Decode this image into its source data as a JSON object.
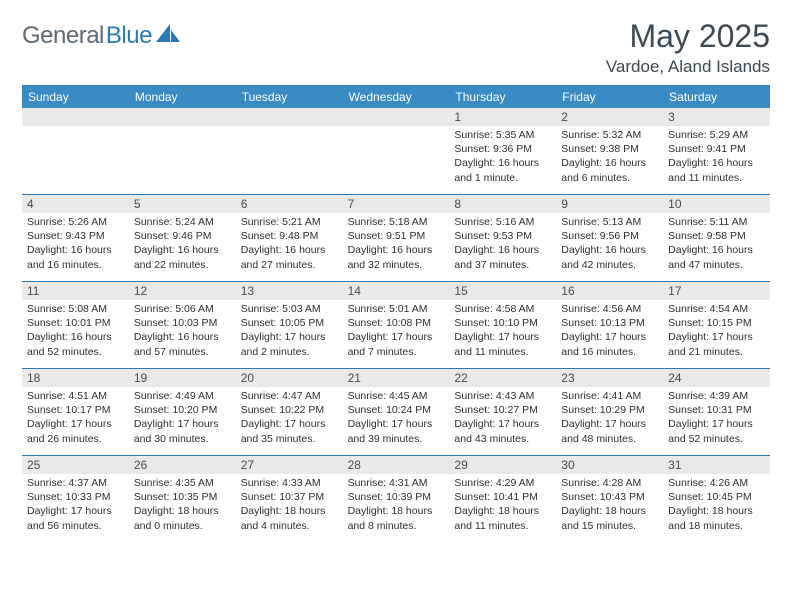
{
  "brand": {
    "text1": "General",
    "text2": "Blue",
    "icon_color": "#2a7ab8",
    "text1_color": "#5d6a74",
    "text2_color": "#2a7ab8"
  },
  "title": "May 2025",
  "location": "Vardoe, Aland Islands",
  "colors": {
    "header_bg": "#3a8ac4",
    "rule": "#2a7ab8",
    "daynum_bg": "#e9e9e9",
    "text": "#2f2f2f"
  },
  "weekdays": [
    "Sunday",
    "Monday",
    "Tuesday",
    "Wednesday",
    "Thursday",
    "Friday",
    "Saturday"
  ],
  "weeks": [
    [
      {
        "empty": true
      },
      {
        "empty": true
      },
      {
        "empty": true
      },
      {
        "empty": true
      },
      {
        "num": "1",
        "sunrise": "Sunrise: 5:35 AM",
        "sunset": "Sunset: 9:36 PM",
        "daylight1": "Daylight: 16 hours",
        "daylight2": "and 1 minute."
      },
      {
        "num": "2",
        "sunrise": "Sunrise: 5:32 AM",
        "sunset": "Sunset: 9:38 PM",
        "daylight1": "Daylight: 16 hours",
        "daylight2": "and 6 minutes."
      },
      {
        "num": "3",
        "sunrise": "Sunrise: 5:29 AM",
        "sunset": "Sunset: 9:41 PM",
        "daylight1": "Daylight: 16 hours",
        "daylight2": "and 11 minutes."
      }
    ],
    [
      {
        "num": "4",
        "sunrise": "Sunrise: 5:26 AM",
        "sunset": "Sunset: 9:43 PM",
        "daylight1": "Daylight: 16 hours",
        "daylight2": "and 16 minutes."
      },
      {
        "num": "5",
        "sunrise": "Sunrise: 5:24 AM",
        "sunset": "Sunset: 9:46 PM",
        "daylight1": "Daylight: 16 hours",
        "daylight2": "and 22 minutes."
      },
      {
        "num": "6",
        "sunrise": "Sunrise: 5:21 AM",
        "sunset": "Sunset: 9:48 PM",
        "daylight1": "Daylight: 16 hours",
        "daylight2": "and 27 minutes."
      },
      {
        "num": "7",
        "sunrise": "Sunrise: 5:18 AM",
        "sunset": "Sunset: 9:51 PM",
        "daylight1": "Daylight: 16 hours",
        "daylight2": "and 32 minutes."
      },
      {
        "num": "8",
        "sunrise": "Sunrise: 5:16 AM",
        "sunset": "Sunset: 9:53 PM",
        "daylight1": "Daylight: 16 hours",
        "daylight2": "and 37 minutes."
      },
      {
        "num": "9",
        "sunrise": "Sunrise: 5:13 AM",
        "sunset": "Sunset: 9:56 PM",
        "daylight1": "Daylight: 16 hours",
        "daylight2": "and 42 minutes."
      },
      {
        "num": "10",
        "sunrise": "Sunrise: 5:11 AM",
        "sunset": "Sunset: 9:58 PM",
        "daylight1": "Daylight: 16 hours",
        "daylight2": "and 47 minutes."
      }
    ],
    [
      {
        "num": "11",
        "sunrise": "Sunrise: 5:08 AM",
        "sunset": "Sunset: 10:01 PM",
        "daylight1": "Daylight: 16 hours",
        "daylight2": "and 52 minutes."
      },
      {
        "num": "12",
        "sunrise": "Sunrise: 5:06 AM",
        "sunset": "Sunset: 10:03 PM",
        "daylight1": "Daylight: 16 hours",
        "daylight2": "and 57 minutes."
      },
      {
        "num": "13",
        "sunrise": "Sunrise: 5:03 AM",
        "sunset": "Sunset: 10:05 PM",
        "daylight1": "Daylight: 17 hours",
        "daylight2": "and 2 minutes."
      },
      {
        "num": "14",
        "sunrise": "Sunrise: 5:01 AM",
        "sunset": "Sunset: 10:08 PM",
        "daylight1": "Daylight: 17 hours",
        "daylight2": "and 7 minutes."
      },
      {
        "num": "15",
        "sunrise": "Sunrise: 4:58 AM",
        "sunset": "Sunset: 10:10 PM",
        "daylight1": "Daylight: 17 hours",
        "daylight2": "and 11 minutes."
      },
      {
        "num": "16",
        "sunrise": "Sunrise: 4:56 AM",
        "sunset": "Sunset: 10:13 PM",
        "daylight1": "Daylight: 17 hours",
        "daylight2": "and 16 minutes."
      },
      {
        "num": "17",
        "sunrise": "Sunrise: 4:54 AM",
        "sunset": "Sunset: 10:15 PM",
        "daylight1": "Daylight: 17 hours",
        "daylight2": "and 21 minutes."
      }
    ],
    [
      {
        "num": "18",
        "sunrise": "Sunrise: 4:51 AM",
        "sunset": "Sunset: 10:17 PM",
        "daylight1": "Daylight: 17 hours",
        "daylight2": "and 26 minutes."
      },
      {
        "num": "19",
        "sunrise": "Sunrise: 4:49 AM",
        "sunset": "Sunset: 10:20 PM",
        "daylight1": "Daylight: 17 hours",
        "daylight2": "and 30 minutes."
      },
      {
        "num": "20",
        "sunrise": "Sunrise: 4:47 AM",
        "sunset": "Sunset: 10:22 PM",
        "daylight1": "Daylight: 17 hours",
        "daylight2": "and 35 minutes."
      },
      {
        "num": "21",
        "sunrise": "Sunrise: 4:45 AM",
        "sunset": "Sunset: 10:24 PM",
        "daylight1": "Daylight: 17 hours",
        "daylight2": "and 39 minutes."
      },
      {
        "num": "22",
        "sunrise": "Sunrise: 4:43 AM",
        "sunset": "Sunset: 10:27 PM",
        "daylight1": "Daylight: 17 hours",
        "daylight2": "and 43 minutes."
      },
      {
        "num": "23",
        "sunrise": "Sunrise: 4:41 AM",
        "sunset": "Sunset: 10:29 PM",
        "daylight1": "Daylight: 17 hours",
        "daylight2": "and 48 minutes."
      },
      {
        "num": "24",
        "sunrise": "Sunrise: 4:39 AM",
        "sunset": "Sunset: 10:31 PM",
        "daylight1": "Daylight: 17 hours",
        "daylight2": "and 52 minutes."
      }
    ],
    [
      {
        "num": "25",
        "sunrise": "Sunrise: 4:37 AM",
        "sunset": "Sunset: 10:33 PM",
        "daylight1": "Daylight: 17 hours",
        "daylight2": "and 56 minutes."
      },
      {
        "num": "26",
        "sunrise": "Sunrise: 4:35 AM",
        "sunset": "Sunset: 10:35 PM",
        "daylight1": "Daylight: 18 hours",
        "daylight2": "and 0 minutes."
      },
      {
        "num": "27",
        "sunrise": "Sunrise: 4:33 AM",
        "sunset": "Sunset: 10:37 PM",
        "daylight1": "Daylight: 18 hours",
        "daylight2": "and 4 minutes."
      },
      {
        "num": "28",
        "sunrise": "Sunrise: 4:31 AM",
        "sunset": "Sunset: 10:39 PM",
        "daylight1": "Daylight: 18 hours",
        "daylight2": "and 8 minutes."
      },
      {
        "num": "29",
        "sunrise": "Sunrise: 4:29 AM",
        "sunset": "Sunset: 10:41 PM",
        "daylight1": "Daylight: 18 hours",
        "daylight2": "and 11 minutes."
      },
      {
        "num": "30",
        "sunrise": "Sunrise: 4:28 AM",
        "sunset": "Sunset: 10:43 PM",
        "daylight1": "Daylight: 18 hours",
        "daylight2": "and 15 minutes."
      },
      {
        "num": "31",
        "sunrise": "Sunrise: 4:26 AM",
        "sunset": "Sunset: 10:45 PM",
        "daylight1": "Daylight: 18 hours",
        "daylight2": "and 18 minutes."
      }
    ]
  ]
}
